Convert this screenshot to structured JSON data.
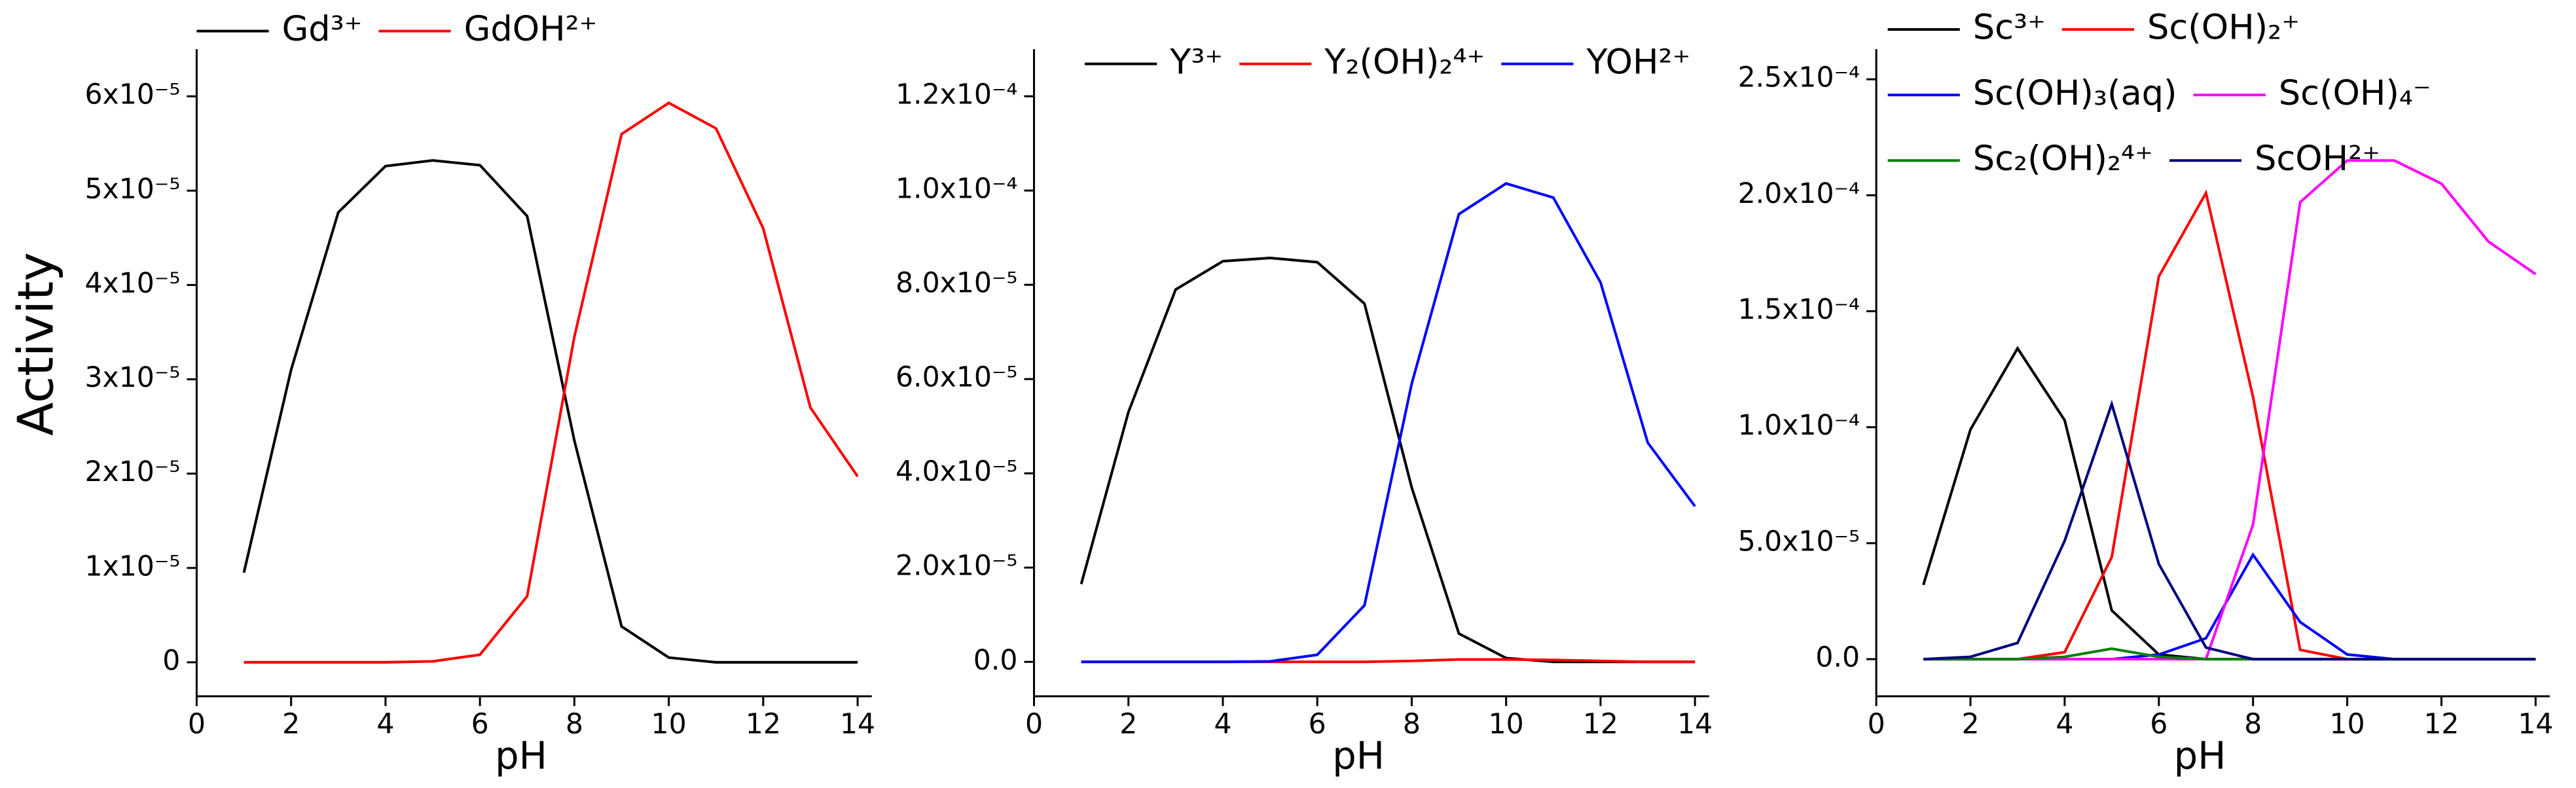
{
  "chart_data": [
    {
      "type": "line",
      "y_label": "Activity",
      "x_label": "pH",
      "x": [
        1,
        2,
        3,
        4,
        5,
        6,
        7,
        8,
        9,
        10,
        11,
        12,
        13,
        14
      ],
      "xlim": [
        0,
        14.3
      ],
      "xticks": [
        0,
        2,
        4,
        6,
        8,
        10,
        12,
        14
      ],
      "ylim": [
        -3.6e-06,
        6.5e-05
      ],
      "yticks": [
        0,
        {
          "value": 1e-05,
          "label": "1x10⁻⁵"
        },
        {
          "value": 2e-05,
          "label": "2x10⁻⁵"
        },
        {
          "value": 3e-05,
          "label": "3x10⁻⁵"
        },
        {
          "value": 4e-05,
          "label": "4x10⁻⁵"
        },
        {
          "value": 5e-05,
          "label": "5x10⁻⁵"
        },
        {
          "value": 6e-05,
          "label": "6x10⁻⁵"
        }
      ],
      "series": [
        {
          "name": "Gd³⁺",
          "color": "#000000",
          "values": [
            9.5e-06,
            3.1e-05,
            4.77e-05,
            5.26e-05,
            5.32e-05,
            5.27e-05,
            4.73e-05,
            2.35e-05,
            3.8e-06,
            5e-07,
            0,
            0,
            0,
            0
          ]
        },
        {
          "name": "GdOH²⁺",
          "color": "#ff0000",
          "values": [
            0,
            0,
            0,
            0,
            1e-07,
            8e-07,
            7e-06,
            3.45e-05,
            5.6e-05,
            5.93e-05,
            5.66e-05,
            4.6e-05,
            2.7e-05,
            1.97e-05
          ]
        }
      ]
    },
    {
      "type": "line",
      "x_label": "pH",
      "x": [
        1,
        2,
        3,
        4,
        5,
        6,
        7,
        8,
        9,
        10,
        11,
        12,
        13,
        14
      ],
      "xlim": [
        0,
        14.3
      ],
      "xticks": [
        0,
        2,
        4,
        6,
        8,
        10,
        12,
        14
      ],
      "ylim": [
        -7.3e-06,
        0.00013
      ],
      "yticks": [
        {
          "value": 0,
          "label": "0.0"
        },
        {
          "value": 2e-05,
          "label": "2.0x10⁻⁵"
        },
        {
          "value": 4e-05,
          "label": "4.0x10⁻⁵"
        },
        {
          "value": 6e-05,
          "label": "6.0x10⁻⁵"
        },
        {
          "value": 8e-05,
          "label": "8.0x10⁻⁵"
        },
        {
          "value": 0.0001,
          "label": "1.0x10⁻⁴"
        },
        {
          "value": 0.00012,
          "label": "1.2x10⁻⁴"
        }
      ],
      "series": [
        {
          "name": "Y³⁺",
          "color": "#000000",
          "values": [
            1.65e-05,
            5.3e-05,
            7.9e-05,
            8.5e-05,
            8.57e-05,
            8.48e-05,
            7.6e-05,
            3.7e-05,
            6e-06,
            8e-07,
            0,
            0,
            0,
            0
          ]
        },
        {
          "name": "Y₂(OH)₂⁴⁺",
          "color": "#ff0000",
          "values": [
            0,
            0,
            0,
            0,
            0,
            0,
            0,
            2e-07,
            5e-07,
            5e-07,
            4e-07,
            2e-07,
            0,
            0
          ]
        },
        {
          "name": "YOH²⁺",
          "color": "#0000ff",
          "values": [
            0,
            0,
            0,
            0,
            1e-07,
            1.5e-06,
            1.2e-05,
            5.9e-05,
            9.5e-05,
            0.0001015,
            9.85e-05,
            8.05e-05,
            4.65e-05,
            3.3e-05
          ]
        }
      ]
    },
    {
      "type": "line",
      "x_label": "pH",
      "x": [
        1,
        2,
        3,
        4,
        5,
        6,
        7,
        8,
        9,
        10,
        11,
        12,
        13,
        14
      ],
      "xlim": [
        0,
        14.3
      ],
      "xticks": [
        0,
        2,
        4,
        6,
        8,
        10,
        12,
        14
      ],
      "ylim": [
        -1.6e-05,
        0.000263
      ],
      "yticks": [
        {
          "value": 0,
          "label": "0.0"
        },
        {
          "value": 5e-05,
          "label": "5.0x10⁻⁵"
        },
        {
          "value": 0.0001,
          "label": "1.0x10⁻⁴"
        },
        {
          "value": 0.00015,
          "label": "1.5x10⁻⁴"
        },
        {
          "value": 0.0002,
          "label": "2.0x10⁻⁴"
        },
        {
          "value": 0.00025,
          "label": "2.5x10⁻⁴"
        }
      ],
      "series": [
        {
          "name": "Sc³⁺",
          "color": "#000000",
          "values": [
            3.2e-05,
            9.9e-05,
            0.000134,
            0.000103,
            2.1e-05,
            2e-06,
            0,
            0,
            0,
            0,
            0,
            0,
            0,
            0
          ]
        },
        {
          "name": "Sc(OH)₂⁺",
          "color": "#ff0000",
          "values": [
            0,
            0,
            0,
            3e-06,
            4.4e-05,
            0.000165,
            0.000201,
            0.000113,
            4e-06,
            0,
            0,
            0,
            0,
            0
          ]
        },
        {
          "name": "Sc(OH)₃(aq)",
          "color": "#0000ff",
          "values": [
            0,
            0,
            0,
            0,
            0,
            2e-06,
            9e-06,
            4.5e-05,
            1.6e-05,
            2e-06,
            0,
            0,
            0,
            0
          ]
        },
        {
          "name": "Sc(OH)₄⁻",
          "color": "#ff00ff",
          "values": [
            0,
            0,
            0,
            0,
            0,
            0,
            0,
            5.8e-05,
            0.000197,
            0.000215,
            0.000215,
            0.000205,
            0.00018,
            0.000166
          ]
        },
        {
          "name": "Sc₂(OH)₂⁴⁺",
          "color": "#008000",
          "values": [
            0,
            0,
            0,
            1e-06,
            4.5e-06,
            1e-06,
            0,
            0,
            0,
            0,
            0,
            0,
            0,
            0
          ]
        },
        {
          "name": "ScOH²⁺",
          "color": "#000080",
          "values": [
            0,
            1e-06,
            7e-06,
            5.1e-05,
            0.00011,
            4.1e-05,
            5e-06,
            0,
            0,
            0,
            0,
            0,
            0,
            0
          ]
        }
      ]
    }
  ]
}
